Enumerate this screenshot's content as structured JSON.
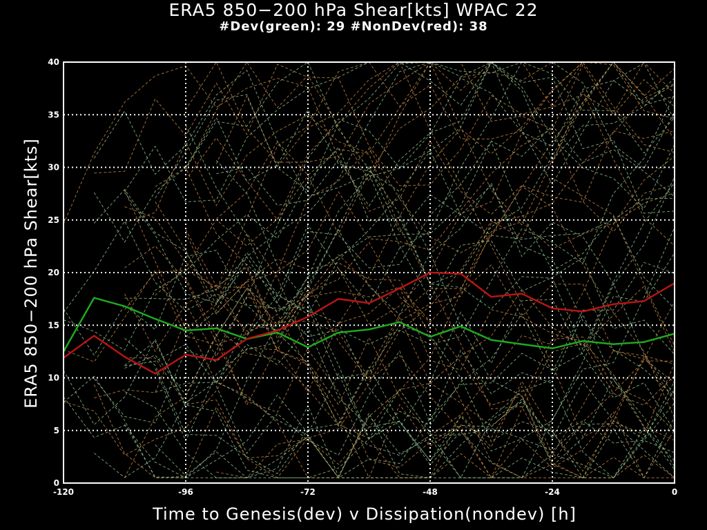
{
  "chart_data": {
    "type": "line",
    "title": "ERA5 850−200 hPa Shear[kts] WPAC 22",
    "subtitle": "#Dev(green): 29 #NonDev(red): 38",
    "xlabel": "Time to Genesis(dev) v Dissipation(nondev) [h]",
    "ylabel": "ERA5 850−200 hPa Shear[kts]",
    "xlim": [
      -120,
      0
    ],
    "ylim": [
      0,
      40
    ],
    "x_ticks": [
      -120,
      -96,
      -72,
      -48,
      -24,
      0
    ],
    "y_ticks": [
      0,
      5,
      10,
      15,
      20,
      25,
      30,
      35,
      40
    ],
    "grid": true,
    "x": [
      -120,
      -114,
      -108,
      -102,
      -96,
      -90,
      -84,
      -78,
      -72,
      -66,
      -60,
      -54,
      -48,
      -42,
      -36,
      -30,
      -24,
      -18,
      -12,
      -6,
      0
    ],
    "series": [
      {
        "name": "Dev",
        "color": "#1fa81f",
        "values": [
          12.5,
          17.6,
          16.8,
          15.6,
          14.5,
          14.7,
          13.7,
          14.3,
          12.9,
          14.3,
          14.6,
          15.3,
          13.9,
          14.9,
          13.6,
          13.2,
          12.8,
          13.5,
          13.2,
          13.4,
          14.2
        ]
      },
      {
        "name": "NonDev",
        "color": "#b81414",
        "values": [
          11.9,
          14.0,
          12.0,
          10.4,
          12.2,
          11.7,
          13.7,
          14.5,
          15.8,
          17.5,
          17.1,
          18.5,
          20.0,
          19.9,
          17.7,
          18.0,
          16.6,
          16.3,
          17.0,
          17.3,
          19.0
        ]
      }
    ],
    "background_color": "#000000",
    "dev_trace_color": "#9acd9a",
    "nondev_trace_color": "#d2904a"
  }
}
